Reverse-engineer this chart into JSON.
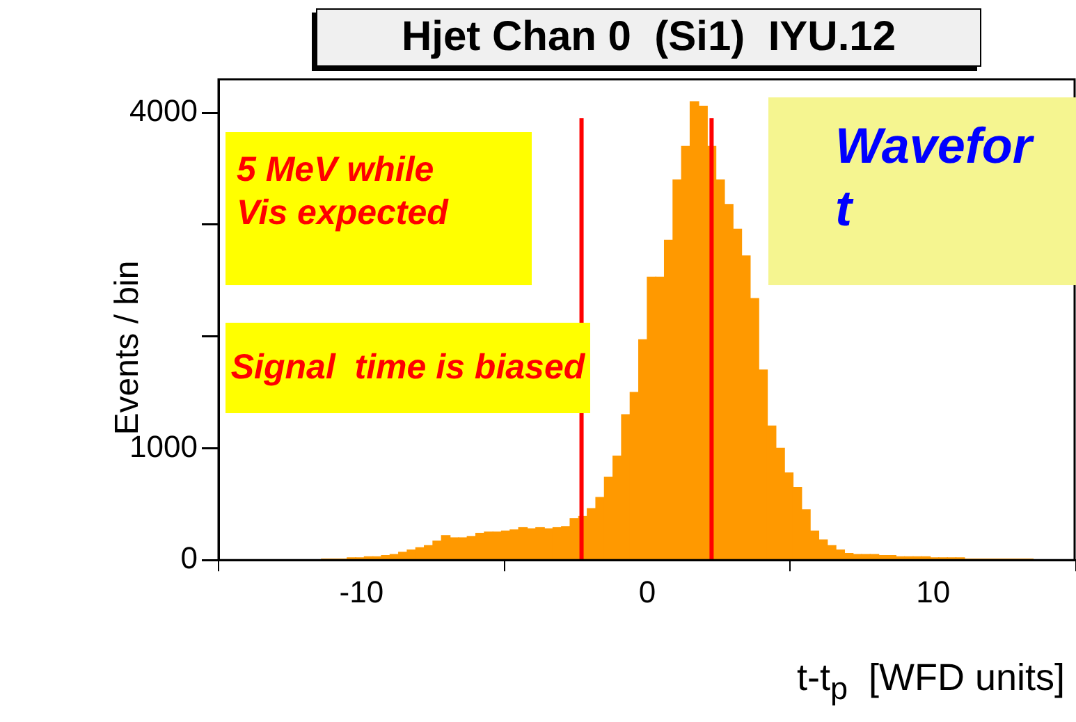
{
  "chart_data": {
    "type": "histogram",
    "title": "Hjet Chan 0  (Si1)  IYU.12",
    "xlabel": "t-t$_{p}$  [WFD units]",
    "ylabel": "Events / bin",
    "bins": [
      -11.4,
      -11.1,
      -10.8,
      -10.5,
      -10.2,
      -9.9,
      -9.6,
      -9.3,
      -9,
      -8.7,
      -8.4,
      -8.1,
      -7.8,
      -7.5,
      -7.2,
      -6.9,
      -6.6,
      -6.3,
      -6,
      -5.7,
      -5.4,
      -5.1,
      -4.8,
      -4.5,
      -4.2,
      -3.9,
      -3.6,
      -3.3,
      -3,
      -2.7,
      -2.4,
      -2.1,
      -1.8,
      -1.5,
      -1.2,
      -0.9,
      -0.6,
      -0.3,
      0,
      0.3,
      0.6,
      0.9,
      1.2,
      1.5,
      1.8,
      2.1,
      2.4,
      2.7,
      3,
      3.3,
      3.6,
      3.9,
      4.2,
      4.5,
      4.8,
      5.1,
      5.4,
      5.7,
      6,
      6.3,
      6.6,
      6.9,
      7.2,
      7.5,
      7.8,
      8.1,
      8.4,
      8.7,
      9,
      9.3,
      9.6,
      9.9,
      10.2,
      10.5,
      10.8,
      11.1,
      11.4,
      11.7,
      12,
      12.3,
      12.6,
      12.9,
      13.2,
      13.5
    ],
    "values": [
      10,
      10,
      10,
      20,
      20,
      30,
      30,
      40,
      50,
      70,
      90,
      110,
      130,
      170,
      220,
      200,
      200,
      210,
      240,
      250,
      250,
      260,
      270,
      290,
      280,
      290,
      280,
      290,
      300,
      370,
      390,
      460,
      560,
      740,
      930,
      1300,
      1500,
      1970,
      2530,
      2530,
      2860,
      3400,
      3700,
      4100,
      4060,
      3700,
      3400,
      3180,
      2960,
      2720,
      2340,
      1700,
      1200,
      1000,
      780,
      650,
      450,
      260,
      180,
      130,
      90,
      60,
      50,
      50,
      50,
      40,
      40,
      30,
      30,
      30,
      30,
      20,
      20,
      20,
      20,
      10,
      10,
      10,
      10,
      10,
      10,
      10,
      10
    ],
    "color": "#ff9900",
    "xlim": [
      -15,
      15
    ],
    "xticks": [
      -10,
      0,
      10
    ],
    "ylim": [
      0,
      4300
    ],
    "yticks": [
      0,
      1000,
      {
        "value": 2000,
        "label": null
      },
      {
        "value": 3000,
        "label": null
      },
      4000
    ],
    "grid": false,
    "legend": false,
    "ref_lines": [
      {
        "axis": "x",
        "value": -2.3,
        "color": "#ff0000"
      },
      {
        "axis": "x",
        "value": 2.25,
        "color": "#ff0000"
      }
    ],
    "annotations": [
      "5 MeV while\nVis expected",
      "Signal  time is biased",
      "Wavefor\nt"
    ]
  }
}
